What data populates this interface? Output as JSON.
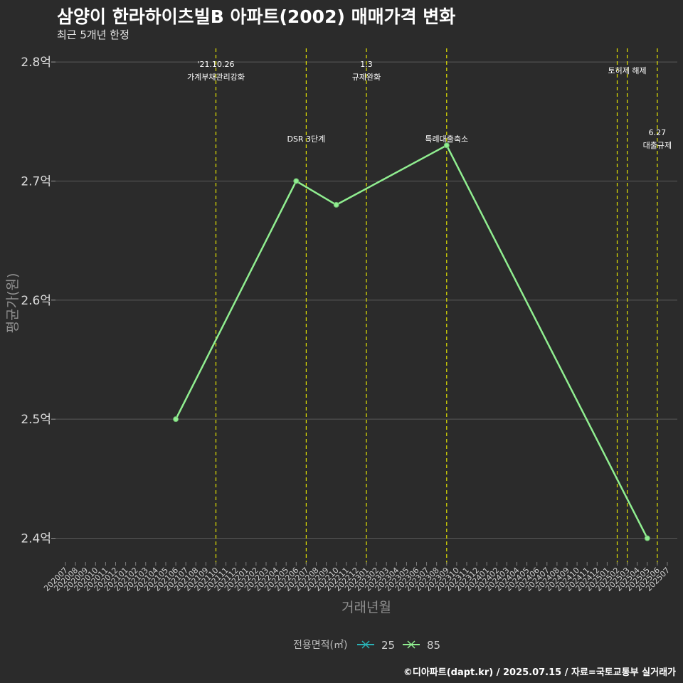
{
  "title": "삼양이 한라하이츠빌B 아파트(2002) 매매가격 변화",
  "subtitle": "최근 5개년 한정",
  "footer": "©디아파트(dapt.kr) / 2025.07.15 / 자료=국토교통부 실거래가",
  "chart_data": {
    "type": "line",
    "title": "삼양이 한라하이츠빌B 아파트(2002) 매매가격 변화",
    "xlabel": "거래년월",
    "ylabel": "평균가(원)",
    "ylim": [
      2.38,
      2.815
    ],
    "y_ticks": [
      {
        "value": 2.4,
        "label": "2.4억"
      },
      {
        "value": 2.5,
        "label": "2.5억"
      },
      {
        "value": 2.6,
        "label": "2.6억"
      },
      {
        "value": 2.7,
        "label": "2.7억"
      },
      {
        "value": 2.8,
        "label": "2.8억"
      }
    ],
    "categories": [
      "202007",
      "202008",
      "202009",
      "202010",
      "202011",
      "202012",
      "202101",
      "202102",
      "202103",
      "202104",
      "202105",
      "202106",
      "202107",
      "202108",
      "202109",
      "202110",
      "202111",
      "202112",
      "202201",
      "202202",
      "202203",
      "202204",
      "202205",
      "202206",
      "202207",
      "202208",
      "202209",
      "202210",
      "202211",
      "202212",
      "202301",
      "202302",
      "202303",
      "202304",
      "202305",
      "202306",
      "202307",
      "202308",
      "202309",
      "202310",
      "202311",
      "202312",
      "202401",
      "202402",
      "202403",
      "202404",
      "202405",
      "202406",
      "202407",
      "202408",
      "202409",
      "202410",
      "202411",
      "202412",
      "202501",
      "202502",
      "202503",
      "202504",
      "202505",
      "202506",
      "202507"
    ],
    "series": [
      {
        "name": "25",
        "color": "#2ab1b5",
        "points": []
      },
      {
        "name": "85",
        "color": "#90ee90",
        "points": [
          {
            "x": "202106",
            "y": 2.5
          },
          {
            "x": "202206",
            "y": 2.7
          },
          {
            "x": "202210",
            "y": 2.68
          },
          {
            "x": "202309",
            "y": 2.73
          },
          {
            "x": "202505",
            "y": 2.4
          }
        ]
      }
    ],
    "vlines": [
      {
        "x": "202110",
        "text1": "'21.10.26",
        "text2": "가계부채관리강화",
        "level": "high"
      },
      {
        "x": "202207",
        "text1": "DSR 3단계",
        "text2": "",
        "level": "mid"
      },
      {
        "x": "202301",
        "text1": "1.3",
        "text2": "규제완화",
        "level": "high"
      },
      {
        "x": "202309",
        "text1": "특례대출축소",
        "text2": "",
        "level": "mid"
      },
      {
        "x": "202502",
        "text1": "",
        "text2": "",
        "level": "none"
      },
      {
        "x": "202503",
        "text1": "토허제 해제",
        "text2": "",
        "level": "mid-high"
      },
      {
        "x": "202506",
        "text1": "6.27",
        "text2": "대출규제",
        "level": "low"
      }
    ],
    "legend": {
      "title": "전용면적(㎡)",
      "entries": [
        "25",
        "85"
      ],
      "position": "bottom"
    },
    "colors": {
      "background": "#2b2b2b",
      "grid": "#5a5a5a",
      "vline": "#e5e500"
    }
  }
}
